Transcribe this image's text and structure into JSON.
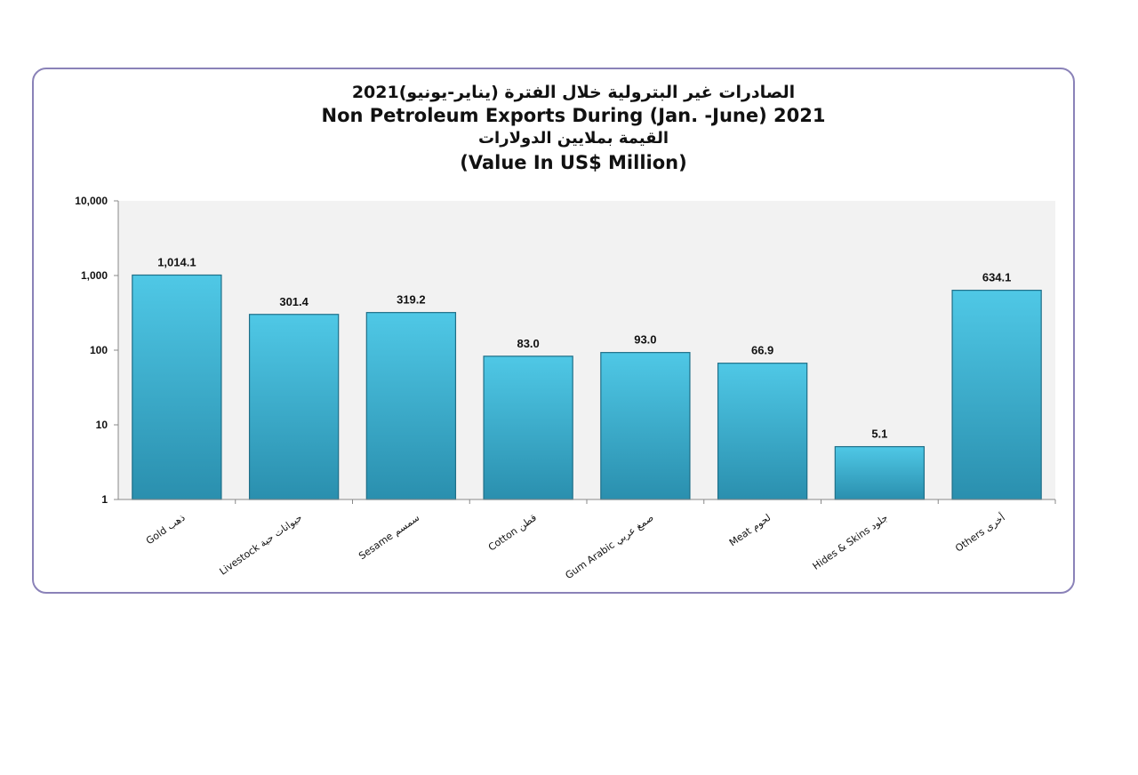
{
  "chart_data": {
    "type": "bar",
    "title_ar": "الصادرات غير البترولية خلال الفترة (يناير-يونيو)2021",
    "title_en": "Non Petroleum Exports During (Jan. -June) 2021",
    "subtitle_ar": "القيمة بملايين الدولارات",
    "subtitle_en": "(Value In US$  Million)",
    "yscale": "log",
    "ylim": [
      1,
      10000
    ],
    "yticks": [
      "1",
      "10",
      "100",
      "1,000",
      "10,000"
    ],
    "grid": false,
    "categories": [
      "Gold ذهب",
      "Livestock حيوانات حية",
      "Sesame سمسم",
      "Cotton قطن",
      "Gum Arabic صمغ عربي",
      "Meat لحوم",
      "Hides & Skins جلود",
      "Others أخرى"
    ],
    "values": [
      1014.1,
      301.4,
      319.2,
      83.0,
      93.0,
      66.9,
      5.1,
      634.1
    ],
    "value_labels": [
      "1,014.1",
      "301.4",
      "319.2",
      "83.0",
      "93.0",
      "66.9",
      "5.1",
      "634.1"
    ],
    "colors": {
      "bar_light": "#4fc8e6",
      "bar_dark": "#2a8fae",
      "bar_edge": "#1f6f88",
      "plot_bg": "#f2f2f2",
      "border": "#8a82b8"
    }
  }
}
